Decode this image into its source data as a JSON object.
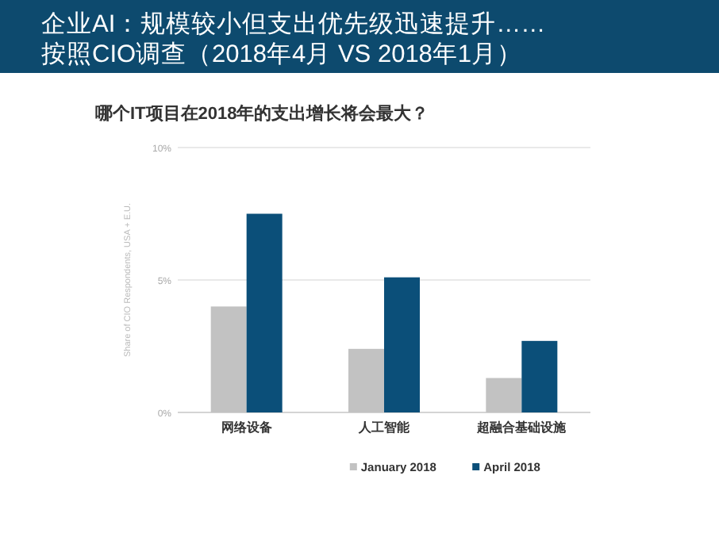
{
  "chart_data": {
    "type": "bar",
    "title": "企业AI：规模较小但支出优先级迅速提升……",
    "subtitle": "按照CIO调查（2018年4月 VS 2018年1月）",
    "annotations": [
      "哪个IT项目在2018年的支出增长将会最大？"
    ],
    "ylabel": "Share of CIO Respondents, USA + E.U.",
    "categories": [
      "网络设备",
      "人工智能",
      "超融合基础设施"
    ],
    "series": [
      {
        "name": "January 2018",
        "color": "#c2c2c2",
        "values": [
          4.0,
          2.4,
          1.3
        ]
      },
      {
        "name": "April 2018",
        "color": "#0b4f79",
        "values": [
          7.5,
          5.1,
          2.7
        ]
      }
    ],
    "ylim": [
      0,
      10
    ],
    "yticks": [
      {
        "value": 0,
        "label": "0%"
      },
      {
        "value": 5,
        "label": "5%"
      },
      {
        "value": 10,
        "label": "10%"
      }
    ],
    "grid": "y",
    "legend": "bottom"
  }
}
